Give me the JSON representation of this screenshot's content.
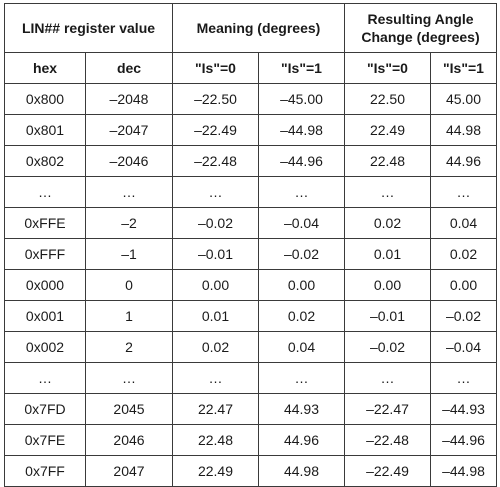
{
  "header": {
    "group1": "LIN## register value",
    "group2": "Meaning (degrees)",
    "group3": "Resulting Angle Change (degrees)",
    "sub": [
      "hex",
      "dec",
      "\"Is\"=0",
      "\"Is\"=1",
      "\"Is\"=0",
      "\"Is\"=1"
    ]
  },
  "rows": [
    [
      "0x800",
      "–2048",
      "–22.50",
      "–45.00",
      "22.50",
      "45.00"
    ],
    [
      "0x801",
      "–2047",
      "–22.49",
      "–44.98",
      "22.49",
      "44.98"
    ],
    [
      "0x802",
      "–2046",
      "–22.48",
      "–44.96",
      "22.48",
      "44.96"
    ],
    [
      "…",
      "…",
      "…",
      "…",
      "…",
      "…"
    ],
    [
      "0xFFE",
      "–2",
      "–0.02",
      "–0.04",
      "0.02",
      "0.04"
    ],
    [
      "0xFFF",
      "–1",
      "–0.01",
      "–0.02",
      "0.01",
      "0.02"
    ],
    [
      "0x000",
      "0",
      "0.00",
      "0.00",
      "0.00",
      "0.00"
    ],
    [
      "0x001",
      "1",
      "0.01",
      "0.02",
      "–0.01",
      "–0.02"
    ],
    [
      "0x002",
      "2",
      "0.02",
      "0.04",
      "–0.02",
      "–0.04"
    ],
    [
      "…",
      "…",
      "…",
      "…",
      "…",
      "…"
    ],
    [
      "0x7FD",
      "2045",
      "22.47",
      "44.93",
      "–22.47",
      "–44.93"
    ],
    [
      "0x7FE",
      "2046",
      "22.48",
      "44.96",
      "–22.48",
      "–44.96"
    ],
    [
      "0x7FF",
      "2047",
      "22.49",
      "44.98",
      "–22.49",
      "–44.98"
    ]
  ]
}
